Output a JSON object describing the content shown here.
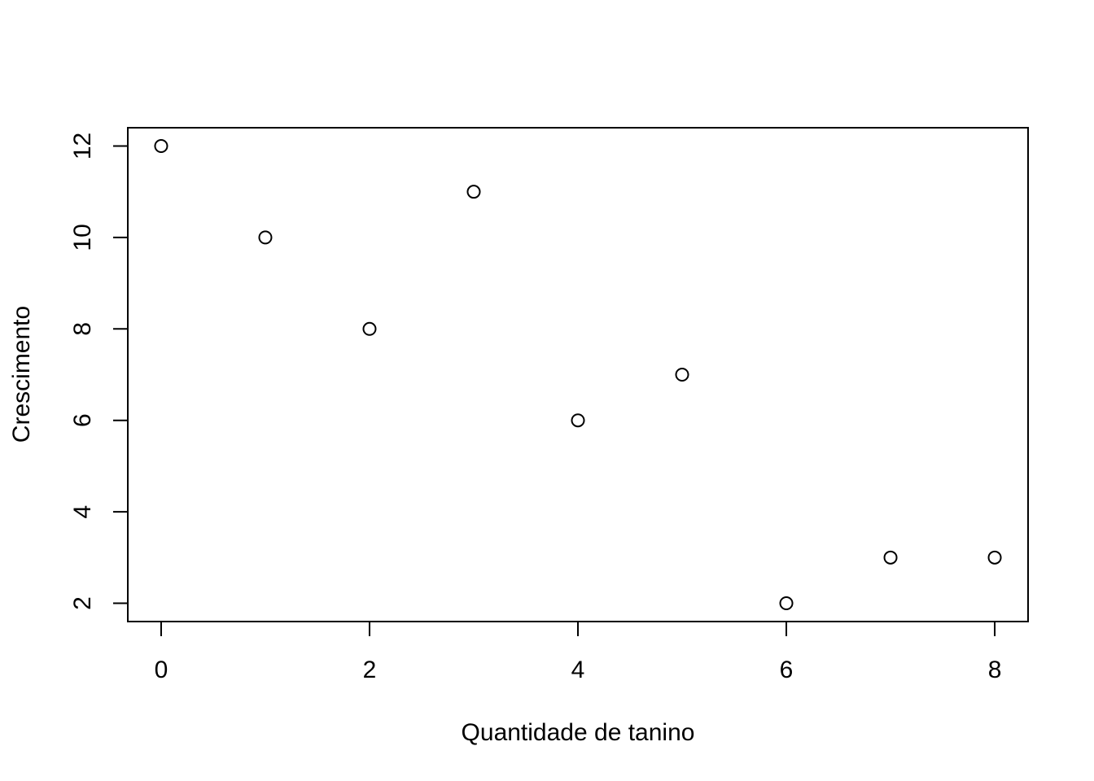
{
  "chart_data": {
    "type": "scatter",
    "title": "",
    "xlabel": "Quantidade de tanino",
    "ylabel": "Crescimento",
    "x": [
      0,
      1,
      2,
      3,
      4,
      5,
      6,
      7,
      8
    ],
    "y": [
      12,
      10,
      8,
      11,
      6,
      7,
      2,
      3,
      3
    ],
    "xlim": [
      -0.32,
      8.32
    ],
    "ylim": [
      1.6,
      12.4
    ],
    "xticks": [
      0,
      2,
      4,
      6,
      8
    ],
    "yticks": [
      2,
      4,
      6,
      8,
      10,
      12
    ],
    "grid": false,
    "legend": "none",
    "marker": "open-circle",
    "colors": {
      "axis": "#000000",
      "marker": "#000000",
      "background": "#ffffff"
    }
  }
}
